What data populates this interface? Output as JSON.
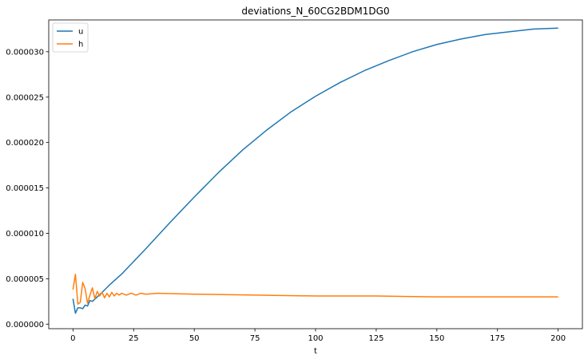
{
  "chart_data": {
    "type": "line",
    "title": "deviations_N_60CG2BDM1DG0",
    "xlabel": "t",
    "ylabel": "",
    "xlim": [
      -10,
      210
    ],
    "ylim": [
      -5e-07,
      3.35e-05
    ],
    "xticks": [
      0,
      25,
      50,
      75,
      100,
      125,
      150,
      175,
      200
    ],
    "xtick_labels": [
      "0",
      "25",
      "50",
      "75",
      "100",
      "125",
      "150",
      "175",
      "200"
    ],
    "yticks": [
      0.0,
      5e-06,
      1e-05,
      1.5e-05,
      2e-05,
      2.5e-05,
      3e-05
    ],
    "ytick_labels": [
      "0.000000",
      "0.000005",
      "0.000010",
      "0.000015",
      "0.000020",
      "0.000025",
      "0.000030"
    ],
    "grid": false,
    "legend_position": "top-left",
    "series": [
      {
        "name": "u",
        "color": "#1f77b4",
        "points": [
          [
            0,
            2.8e-06
          ],
          [
            1,
            1.2e-06
          ],
          [
            2,
            1.8e-06
          ],
          [
            3,
            1.8e-06
          ],
          [
            4,
            1.7e-06
          ],
          [
            5,
            2.1e-06
          ],
          [
            6,
            2e-06
          ],
          [
            7,
            2.6e-06
          ],
          [
            8,
            2.5e-06
          ],
          [
            10,
            3e-06
          ],
          [
            12,
            3.5e-06
          ],
          [
            15,
            4.3e-06
          ],
          [
            20,
            5.5e-06
          ],
          [
            30,
            8.3e-06
          ],
          [
            40,
            1.12e-05
          ],
          [
            50,
            1.4e-05
          ],
          [
            60,
            1.67e-05
          ],
          [
            70,
            1.92e-05
          ],
          [
            80,
            2.14e-05
          ],
          [
            90,
            2.34e-05
          ],
          [
            100,
            2.51e-05
          ],
          [
            110,
            2.66e-05
          ],
          [
            120,
            2.79e-05
          ],
          [
            130,
            2.9e-05
          ],
          [
            140,
            3e-05
          ],
          [
            150,
            3.08e-05
          ],
          [
            160,
            3.14e-05
          ],
          [
            170,
            3.19e-05
          ],
          [
            180,
            3.22e-05
          ],
          [
            190,
            3.25e-05
          ],
          [
            200,
            3.26e-05
          ]
        ]
      },
      {
        "name": "h",
        "color": "#ff7f0e",
        "points": [
          [
            0,
            3.8e-06
          ],
          [
            1,
            5.5e-06
          ],
          [
            2,
            2.2e-06
          ],
          [
            3,
            2.4e-06
          ],
          [
            4,
            4.6e-06
          ],
          [
            5,
            3.9e-06
          ],
          [
            6,
            2.3e-06
          ],
          [
            7,
            3.2e-06
          ],
          [
            8,
            4e-06
          ],
          [
            9,
            2.8e-06
          ],
          [
            10,
            3.6e-06
          ],
          [
            11,
            3.1e-06
          ],
          [
            12,
            3.5e-06
          ],
          [
            13,
            2.9e-06
          ],
          [
            14,
            3.4e-06
          ],
          [
            15,
            3e-06
          ],
          [
            16,
            3.5e-06
          ],
          [
            17,
            3.1e-06
          ],
          [
            18,
            3.4e-06
          ],
          [
            19,
            3.2e-06
          ],
          [
            20,
            3.4e-06
          ],
          [
            22,
            3.2e-06
          ],
          [
            24,
            3.4e-06
          ],
          [
            26,
            3.2e-06
          ],
          [
            28,
            3.4e-06
          ],
          [
            30,
            3.3e-06
          ],
          [
            35,
            3.4e-06
          ],
          [
            50,
            3.3e-06
          ],
          [
            75,
            3.2e-06
          ],
          [
            100,
            3.1e-06
          ],
          [
            125,
            3.1e-06
          ],
          [
            150,
            3e-06
          ],
          [
            175,
            3e-06
          ],
          [
            200,
            3e-06
          ]
        ]
      }
    ]
  }
}
